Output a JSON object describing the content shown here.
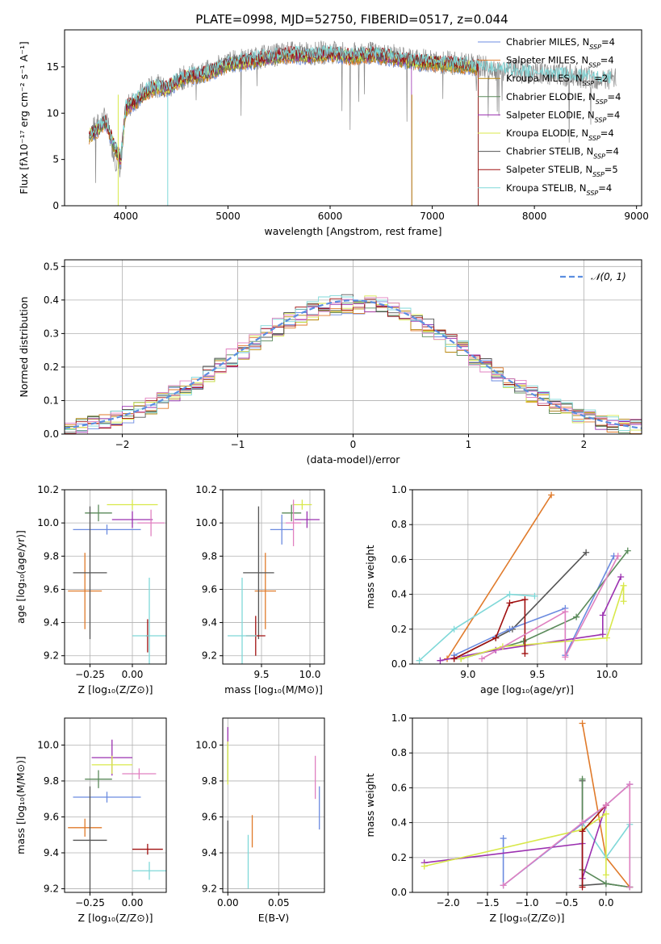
{
  "figure_title": "PLATE=0998, MJD=52750, FIBERID=0517, z=0.044",
  "colors": {
    "chabrier_miles": "#6b8be0",
    "salpeter_miles": "#e07a2a",
    "kroupa_miles": "#b8860b",
    "chabrier_elodie": "#5a8a5a",
    "salpeter_elodie": "#9b30b0",
    "kroupa_elodie": "#d8e84a",
    "chabrier_stelib": "#555555",
    "salpeter_stelib": "#a01010",
    "kroupa_stelib": "#7fd8d8",
    "miles_pink": "#e080c0",
    "data": "#888888",
    "normal": "#5b8ee0"
  },
  "chart_data": [
    {
      "id": "spectrum",
      "type": "line",
      "title": "PLATE=0998, MJD=52750, FIBERID=0517, z=0.044",
      "xlabel": "wavelength [Angstrom, rest frame]",
      "ylabel": "Flux [fλ10⁻¹⁷ erg cm⁻² s⁻¹ A⁻¹]",
      "xlim": [
        3400,
        9050
      ],
      "ylim": [
        0,
        19
      ],
      "xticks": [
        4000,
        5000,
        6000,
        7000,
        8000,
        9000
      ],
      "yticks": [
        0,
        5,
        10,
        15
      ],
      "legend": [
        "Chabrier MILES, N_SSP=4",
        "Salpeter MILES, N_SSP=4",
        "Kroupa MILES, N_SSP=2",
        "Chabrier ELODIE, N_SSP=4",
        "Salpeter ELODIE, N_SSP=4",
        "Kroupa ELODIE, N_SSP=4",
        "Chabrier STELIB, N_SSP=4",
        "Salpeter STELIB, N_SSP=5",
        "Kroupa STELIB, N_SSP=4"
      ],
      "legend_loc": "right",
      "data_x": [
        3640,
        3700,
        3800,
        3900,
        3950,
        4000,
        4100,
        4200,
        4300,
        4400,
        4500,
        4600,
        4800,
        5000,
        5200,
        5400,
        5600,
        5800,
        6000,
        6200,
        6400,
        6600,
        6800,
        7000,
        7200,
        7400,
        7600,
        7800,
        8000,
        8200,
        8400,
        8600,
        8800
      ],
      "data_y": [
        8,
        8.5,
        9.5,
        5,
        4,
        10.5,
        11.5,
        12.5,
        13,
        12.5,
        13.5,
        14,
        14.5,
        15.5,
        15.8,
        16.2,
        16.5,
        16.4,
        16.6,
        16.3,
        16.5,
        16.2,
        15.8,
        15.6,
        15.4,
        15.2,
        14.8,
        14.6,
        14.3,
        14.2,
        14.1,
        13.8,
        13.6
      ],
      "model_y": [
        7.5,
        8,
        9,
        6,
        5,
        10.5,
        11.3,
        12.3,
        12.8,
        12.6,
        13.4,
        13.9,
        14.3,
        15.3,
        15.6,
        16.0,
        16.3,
        16.2,
        16.4,
        16.1,
        16.3,
        16.0,
        15.6,
        15.4,
        15.2,
        15.0,
        14.6,
        14.4,
        14.1,
        14.0,
        13.9,
        13.7,
        13.5
      ],
      "model_end": [
        7450,
        7450,
        7450,
        7450,
        6800,
        7450,
        7450,
        7450,
        8750
      ]
    },
    {
      "id": "residuals",
      "type": "area",
      "xlabel": "(data-model)/error",
      "ylabel": "Normed distribution",
      "xlim": [
        -2.5,
        2.5
      ],
      "ylim": [
        0,
        0.52
      ],
      "xticks": [
        -2,
        -1,
        0,
        1,
        2
      ],
      "yticks": [
        0.0,
        0.1,
        0.2,
        0.3,
        0.4,
        0.5
      ],
      "legend": [
        "𝒩(0, 1)"
      ],
      "legend_loc": "top-right"
    },
    {
      "id": "age_vs_Z",
      "type": "scatter",
      "xlabel": "Z [log₁₀(Z/Z⊙)]",
      "ylabel": "age  [log₁₀(age/yr)]",
      "xlim": [
        -0.4,
        0.2
      ],
      "ylim": [
        9.15,
        10.2
      ],
      "xticks": [
        -0.25,
        0.0
      ],
      "yticks": [
        9.2,
        9.4,
        9.6,
        9.8,
        10.0,
        10.2
      ],
      "points": [
        {
          "c": "chabrier_miles",
          "x": -0.15,
          "y": 9.96,
          "xe": 0.2,
          "ye": 0.03
        },
        {
          "c": "salpeter_miles",
          "x": -0.28,
          "y": 9.59,
          "xe": 0.1,
          "ye": 0.23
        },
        {
          "c": "chabrier_elodie",
          "x": -0.2,
          "y": 10.06,
          "xe": 0.08,
          "ye": 0.05
        },
        {
          "c": "salpeter_elodie",
          "x": 0.0,
          "y": 10.02,
          "xe": 0.12,
          "ye": 0.05
        },
        {
          "c": "kroupa_elodie",
          "x": 0.0,
          "y": 10.11,
          "xe": 0.15,
          "ye": 0.03
        },
        {
          "c": "chabrier_stelib",
          "x": -0.25,
          "y": 9.7,
          "xe": 0.1,
          "ye": 0.4
        },
        {
          "c": "salpeter_stelib",
          "x": 0.09,
          "y": 9.32,
          "xe": 0.01,
          "ye": 0.1
        },
        {
          "c": "kroupa_stelib",
          "x": 0.1,
          "y": 9.32,
          "xe": 0.1,
          "ye": 0.35
        },
        {
          "c": "miles_pink",
          "x": 0.11,
          "y": 10.0,
          "xe": 0.08,
          "ye": 0.08
        }
      ]
    },
    {
      "id": "age_vs_mass",
      "type": "scatter",
      "xlabel": "mass [log₁₀(M/M⊙)]",
      "ylabel": "",
      "xlim": [
        9.1,
        10.15
      ],
      "ylim": [
        9.15,
        10.2
      ],
      "xticks": [
        9.5,
        10.0
      ],
      "yticks": [
        9.2,
        9.4,
        9.6,
        9.8,
        10.0,
        10.2
      ],
      "points": [
        {
          "c": "chabrier_miles",
          "x": 9.71,
          "y": 9.96,
          "xe": 0.12,
          "ye": 0.09
        },
        {
          "c": "salpeter_miles",
          "x": 9.54,
          "y": 9.59,
          "xe": 0.11,
          "ye": 0.23
        },
        {
          "c": "chabrier_elodie",
          "x": 9.81,
          "y": 10.06,
          "xe": 0.1,
          "ye": 0.05
        },
        {
          "c": "salpeter_elodie",
          "x": 9.97,
          "y": 10.02,
          "xe": 0.13,
          "ye": 0.05
        },
        {
          "c": "kroupa_elodie",
          "x": 9.92,
          "y": 10.11,
          "xe": 0.1,
          "ye": 0.03
        },
        {
          "c": "chabrier_stelib",
          "x": 9.47,
          "y": 9.7,
          "xe": 0.16,
          "ye": 0.4
        },
        {
          "c": "salpeter_stelib",
          "x": 9.44,
          "y": 9.32,
          "xe": 0.1,
          "ye": 0.12
        },
        {
          "c": "kroupa_stelib",
          "x": 9.3,
          "y": 9.32,
          "xe": 0.15,
          "ye": 0.35
        },
        {
          "c": "miles_pink",
          "x": 9.83,
          "y": 10.0,
          "xe": 0.08,
          "ye": 0.14
        }
      ]
    },
    {
      "id": "weight_vs_age",
      "type": "line",
      "xlabel": "age  [log₁₀(age/yr)]",
      "ylabel": "mass weight",
      "xlim": [
        8.6,
        10.25
      ],
      "ylim": [
        0.0,
        1.0
      ],
      "xticks": [
        9.0,
        9.5,
        10.0
      ],
      "yticks": [
        0.0,
        0.2,
        0.4,
        0.6,
        0.8,
        1.0
      ],
      "series": [
        {
          "c": "salpeter_miles",
          "x": [
            8.85,
            9.6
          ],
          "y": [
            0.03,
            0.97
          ]
        },
        {
          "c": "chabrier_stelib",
          "x": [
            8.9,
            9.2,
            9.32,
            9.85
          ],
          "y": [
            0.03,
            0.15,
            0.2,
            0.64
          ]
        },
        {
          "c": "kroupa_stelib",
          "x": [
            8.65,
            8.9,
            9.3,
            9.48
          ],
          "y": [
            0.02,
            0.2,
            0.4,
            0.39
          ]
        },
        {
          "c": "chabrier_miles",
          "x": [
            8.9,
            9.3,
            9.7,
            9.7,
            10.05
          ],
          "y": [
            0.05,
            0.2,
            0.32,
            0.05,
            0.62
          ]
        },
        {
          "c": "chabrier_elodie",
          "x": [
            8.95,
            9.4,
            9.78,
            10.15
          ],
          "y": [
            0.03,
            0.13,
            0.27,
            0.65
          ]
        },
        {
          "c": "salpeter_elodie",
          "x": [
            8.8,
            9.2,
            9.97,
            9.97,
            10.1
          ],
          "y": [
            0.02,
            0.08,
            0.17,
            0.28,
            0.5
          ]
        },
        {
          "c": "kroupa_elodie",
          "x": [
            8.95,
            9.25,
            10.0,
            10.12,
            10.12
          ],
          "y": [
            0.03,
            0.1,
            0.15,
            0.45,
            0.36
          ]
        },
        {
          "c": "salpeter_stelib",
          "x": [
            8.9,
            9.2,
            9.3,
            9.41,
            9.41
          ],
          "y": [
            0.03,
            0.15,
            0.35,
            0.37,
            0.06
          ]
        },
        {
          "c": "miles_pink",
          "x": [
            9.1,
            9.7,
            9.7,
            10.08
          ],
          "y": [
            0.03,
            0.3,
            0.04,
            0.62
          ]
        }
      ]
    },
    {
      "id": "mass_vs_Z",
      "type": "scatter",
      "xlabel": "Z [log₁₀(Z/Z⊙)]",
      "ylabel": "mass [log₁₀(M/M⊙)]",
      "xlim": [
        -0.4,
        0.2
      ],
      "ylim": [
        9.18,
        10.15
      ],
      "xticks": [
        -0.25,
        0.0
      ],
      "yticks": [
        9.2,
        9.4,
        9.6,
        9.8,
        10.0
      ],
      "points": [
        {
          "c": "chabrier_miles",
          "x": -0.15,
          "y": 9.71,
          "xe": 0.2,
          "ye": 0.03
        },
        {
          "c": "salpeter_miles",
          "x": -0.28,
          "y": 9.54,
          "xe": 0.1,
          "ye": 0.05
        },
        {
          "c": "chabrier_elodie",
          "x": -0.2,
          "y": 9.81,
          "xe": 0.08,
          "ye": 0.05
        },
        {
          "c": "salpeter_elodie",
          "x": -0.12,
          "y": 9.93,
          "xe": 0.12,
          "ye": 0.1
        },
        {
          "c": "kroupa_elodie",
          "x": -0.12,
          "y": 9.89,
          "xe": 0.12,
          "ye": 0.05
        },
        {
          "c": "chabrier_stelib",
          "x": -0.25,
          "y": 9.47,
          "xe": 0.1,
          "ye": 0.3
        },
        {
          "c": "salpeter_stelib",
          "x": 0.09,
          "y": 9.42,
          "xe": 0.09,
          "ye": 0.03
        },
        {
          "c": "kroupa_stelib",
          "x": 0.1,
          "y": 9.3,
          "xe": 0.1,
          "ye": 0.05
        },
        {
          "c": "miles_pink",
          "x": 0.04,
          "y": 9.84,
          "xe": 0.1,
          "ye": 0.03
        }
      ]
    },
    {
      "id": "mass_vs_ebv",
      "type": "scatter",
      "xlabel": "E(B-V)",
      "ylabel": "",
      "xlim": [
        -0.005,
        0.095
      ],
      "ylim": [
        9.18,
        10.15
      ],
      "xticks": [
        0.0,
        0.05
      ],
      "yticks": [
        9.2,
        9.4,
        9.6,
        9.8,
        10.0
      ],
      "points": [
        {
          "c": "chabrier_miles",
          "x": 0.09,
          "y": 9.65,
          "xe": 0,
          "ye": 0.12
        },
        {
          "c": "salpeter_miles",
          "x": 0.024,
          "y": 9.52,
          "xe": 0,
          "ye": 0.09
        },
        {
          "c": "chabrier_elodie",
          "x": 0.0,
          "y": 9.9,
          "xe": 0,
          "ye": 0.1
        },
        {
          "c": "salpeter_elodie",
          "x": 0.0,
          "y": 10.05,
          "xe": 0,
          "ye": 0.05
        },
        {
          "c": "kroupa_elodie",
          "x": 0.0,
          "y": 9.9,
          "xe": 0,
          "ye": 0.12
        },
        {
          "c": "chabrier_stelib",
          "x": 0.0,
          "y": 9.38,
          "xe": 0,
          "ye": 0.2
        },
        {
          "c": "kroupa_stelib",
          "x": 0.02,
          "y": 9.35,
          "xe": 0,
          "ye": 0.15
        },
        {
          "c": "miles_pink",
          "x": 0.086,
          "y": 9.82,
          "xe": 0,
          "ye": 0.12
        }
      ]
    },
    {
      "id": "weight_vs_Z",
      "type": "line",
      "xlabel": "Z [log₁₀(Z/Z⊙)]",
      "ylabel": "mass weight",
      "xlim": [
        -2.45,
        0.45
      ],
      "ylim": [
        0.0,
        1.0
      ],
      "xticks": [
        -2.0,
        -1.5,
        -1.0,
        -0.5,
        0.0
      ],
      "yticks": [
        0.0,
        0.2,
        0.4,
        0.6,
        0.8,
        1.0
      ],
      "series": [
        {
          "c": "salpeter_miles",
          "x": [
            -0.3,
            0.0,
            0.3
          ],
          "y": [
            0.97,
            0.2,
            0.03
          ]
        },
        {
          "c": "chabrier_stelib",
          "x": [
            -0.3,
            -0.3,
            0.0,
            0.3
          ],
          "y": [
            0.64,
            0.04,
            0.05,
            0.03
          ]
        },
        {
          "c": "kroupa_stelib",
          "x": [
            -0.3,
            0.0,
            0.3,
            0.3
          ],
          "y": [
            0.4,
            0.2,
            0.39,
            0.03
          ]
        },
        {
          "c": "chabrier_miles",
          "x": [
            -1.3,
            -1.3,
            0.0,
            0.3
          ],
          "y": [
            0.31,
            0.04,
            0.5,
            0.62
          ]
        },
        {
          "c": "chabrier_elodie",
          "x": [
            -0.3,
            -0.3,
            0.0,
            0.3
          ],
          "y": [
            0.65,
            0.13,
            0.05,
            0.03
          ]
        },
        {
          "c": "salpeter_elodie",
          "x": [
            -2.3,
            -0.3,
            -0.3,
            0.0
          ],
          "y": [
            0.17,
            0.28,
            0.08,
            0.5
          ]
        },
        {
          "c": "kroupa_elodie",
          "x": [
            -2.3,
            -0.3,
            0.0,
            0.0
          ],
          "y": [
            0.15,
            0.36,
            0.45,
            0.1
          ]
        },
        {
          "c": "salpeter_stelib",
          "x": [
            -0.3,
            -0.3,
            0.0
          ],
          "y": [
            0.03,
            0.35,
            0.5
          ]
        },
        {
          "c": "miles_pink",
          "x": [
            -1.3,
            -0.3,
            0.0,
            0.3,
            0.3
          ],
          "y": [
            0.04,
            0.4,
            0.5,
            0.62,
            0.03
          ]
        }
      ]
    }
  ]
}
